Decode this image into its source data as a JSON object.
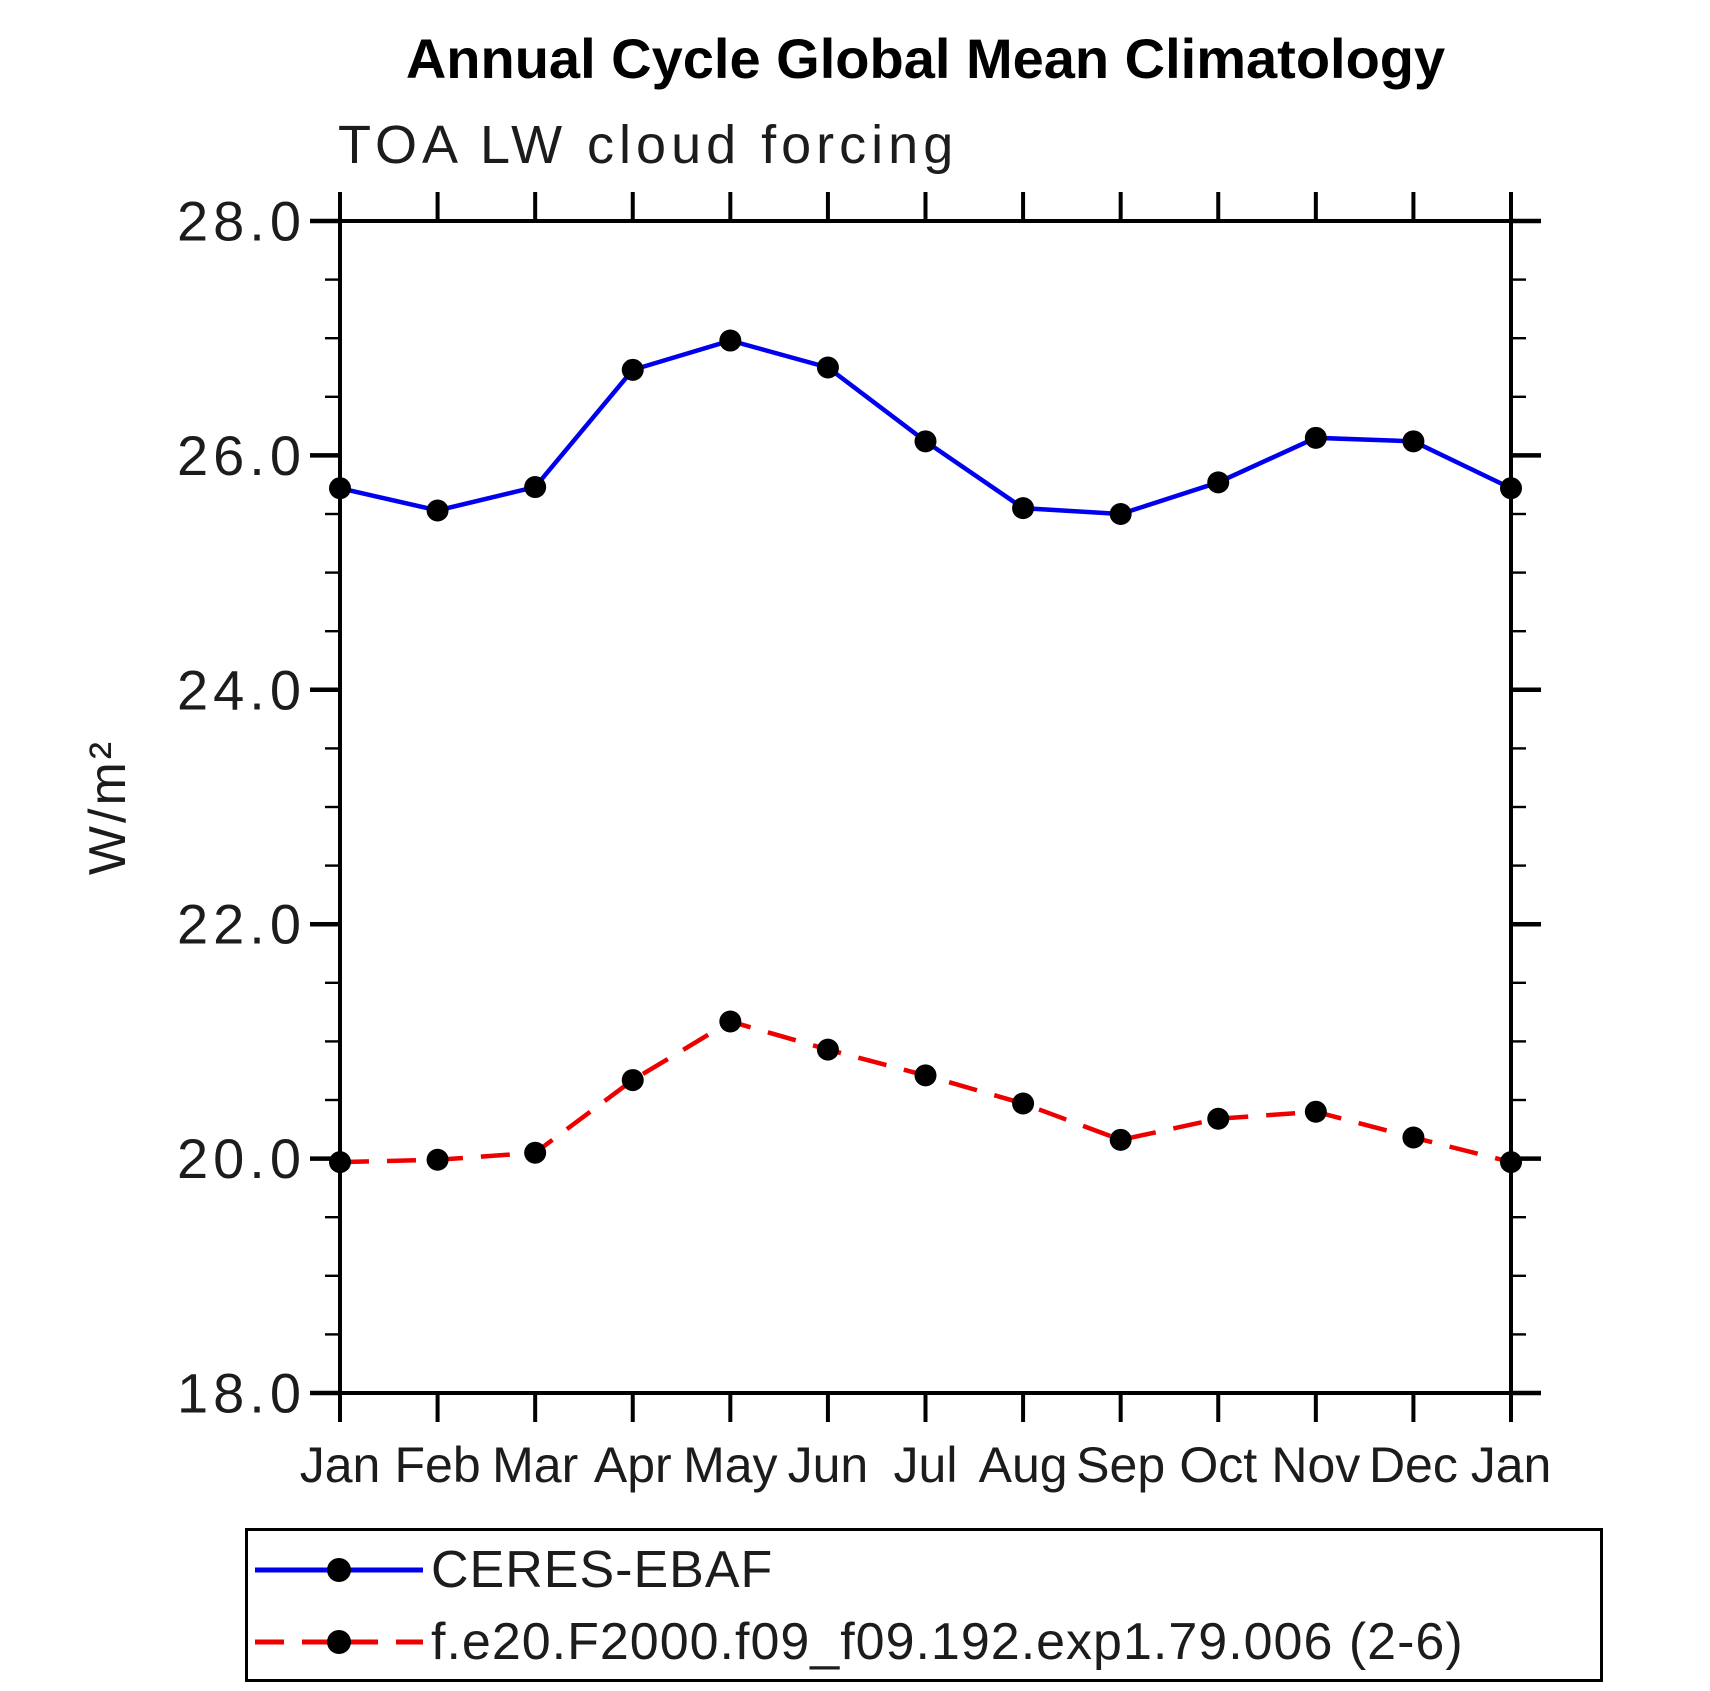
{
  "chart_data": {
    "type": "line",
    "title": "Annual Cycle Global Mean Climatology",
    "subtitle": "TOA LW cloud forcing",
    "ylabel": "W/m²",
    "xlabel": "",
    "x_tick_labels": [
      "Jan",
      "Feb",
      "Mar",
      "Apr",
      "May",
      "Jun",
      "Jul",
      "Aug",
      "Sep",
      "Oct",
      "Nov",
      "Dec",
      "Jan"
    ],
    "ylim": [
      18.0,
      28.0
    ],
    "y_major_tick_labels": [
      "18.0",
      "20.0",
      "22.0",
      "24.0",
      "26.0",
      "28.0"
    ],
    "y_major_step": 2.0,
    "y_minor_step": 0.5,
    "grid": "off",
    "legend_position": "bottom",
    "frame_color": "#000000",
    "series": [
      {
        "name": "CERES-EBAF",
        "color": "#0000ee",
        "line_style": "solid",
        "marker": "circle",
        "marker_color": "#000000",
        "values": [
          25.72,
          25.53,
          25.73,
          26.73,
          26.98,
          26.75,
          26.12,
          25.55,
          25.5,
          25.77,
          26.15,
          26.12,
          25.72
        ]
      },
      {
        "name": "f.e20.F2000.f09_f09.192.exp1.79.006 (2-6)",
        "color": "#ee0000",
        "line_style": "dashed",
        "marker": "circle",
        "marker_color": "#000000",
        "values": [
          19.97,
          19.99,
          20.05,
          20.67,
          21.17,
          20.93,
          20.71,
          20.47,
          20.16,
          20.34,
          20.4,
          20.18,
          19.97
        ]
      }
    ]
  }
}
